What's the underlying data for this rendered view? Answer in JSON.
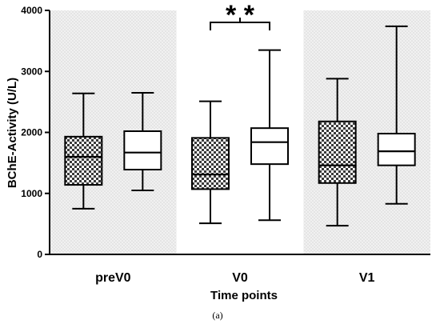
{
  "chart_data": {
    "type": "box",
    "xlabel": "Time points",
    "ylabel": "BChE-Activity (U/L)",
    "ylim": [
      0,
      4000
    ],
    "yticks": [
      "0",
      "1000",
      "2000",
      "3000",
      "4000"
    ],
    "categories": [
      "preV0",
      "V0",
      "V1"
    ],
    "shaded_categories": [
      "preV0",
      "V1"
    ],
    "annotation": {
      "text": "* *",
      "between": [
        "V0 box 1",
        "V0 box 2"
      ]
    },
    "caption": "(a)",
    "boxes": [
      {
        "category": "preV0",
        "pattern": "checkered",
        "min": 750,
        "q1": 1140,
        "median": 1600,
        "q3": 1930,
        "max": 2640
      },
      {
        "category": "preV0",
        "pattern": "white",
        "min": 1050,
        "q1": 1390,
        "median": 1670,
        "q3": 2020,
        "max": 2650
      },
      {
        "category": "V0",
        "pattern": "checkered",
        "min": 510,
        "q1": 1070,
        "median": 1310,
        "q3": 1910,
        "max": 2510
      },
      {
        "category": "V0",
        "pattern": "white",
        "min": 560,
        "q1": 1480,
        "median": 1840,
        "q3": 2070,
        "max": 3350
      },
      {
        "category": "V1",
        "pattern": "checkered",
        "min": 470,
        "q1": 1170,
        "median": 1460,
        "q3": 2180,
        "max": 2880
      },
      {
        "category": "V1",
        "pattern": "white",
        "min": 830,
        "q1": 1460,
        "median": 1690,
        "q3": 1980,
        "max": 3740
      }
    ]
  }
}
